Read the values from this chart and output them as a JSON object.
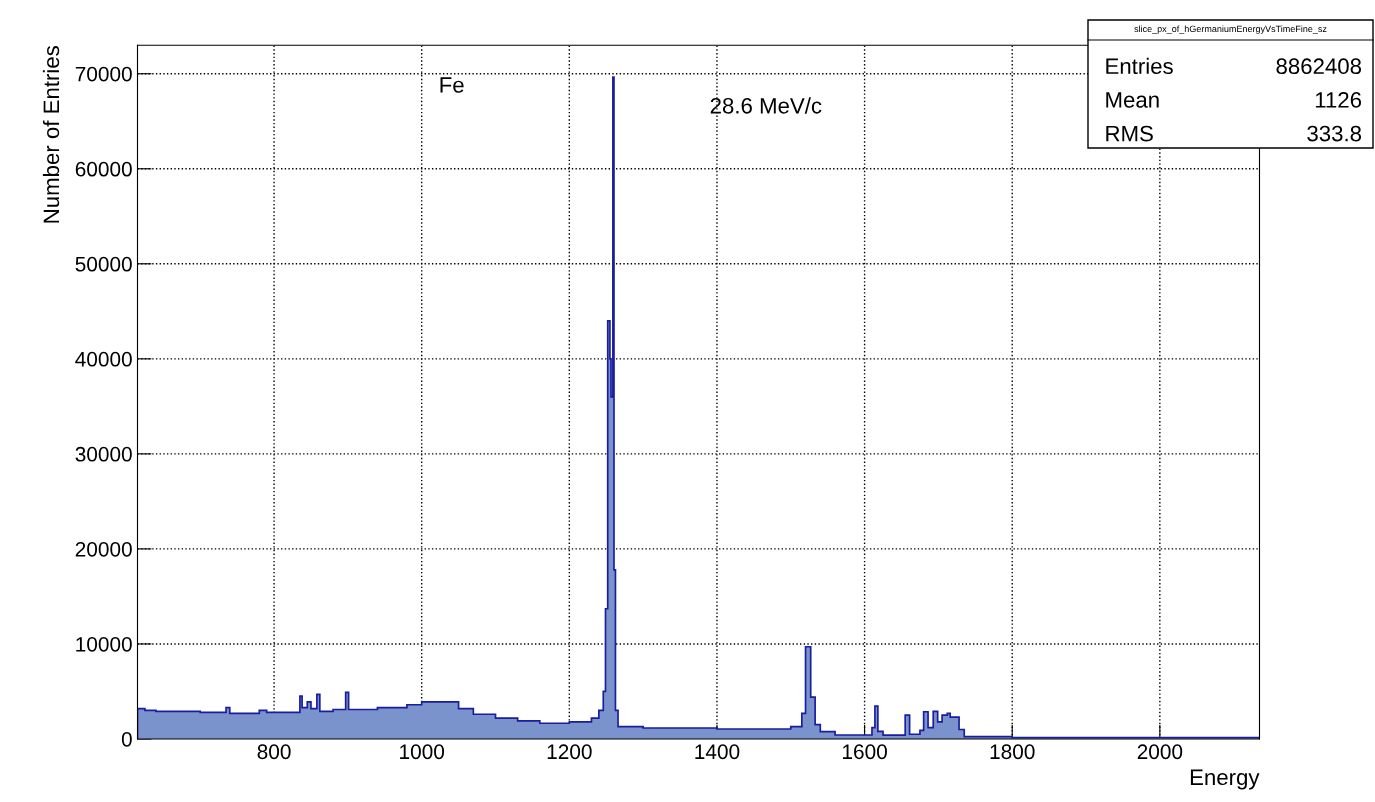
{
  "chart_data": {
    "type": "histogram",
    "xlabel": "Energy",
    "ylabel": "Number of Entries",
    "bins": [
      615,
      625,
      640,
      700,
      735,
      740,
      780,
      790,
      835,
      838,
      845,
      850,
      858,
      862,
      880,
      897,
      901,
      940,
      980,
      1000,
      1050,
      1070,
      1100,
      1130,
      1160,
      1200,
      1230,
      1240,
      1246,
      1249,
      1252,
      1255,
      1256.5,
      1259,
      1260.5,
      1262.5,
      1266,
      1300,
      1400,
      1500,
      1515,
      1520,
      1527,
      1533,
      1540,
      1560,
      1610,
      1614,
      1618,
      1625,
      1655,
      1661,
      1675,
      1680,
      1686,
      1693,
      1699,
      1705,
      1712,
      1716,
      1728,
      1735,
      1800,
      2135
    ],
    "values": [
      3200,
      3000,
      2900,
      2800,
      3300,
      2700,
      3000,
      2800,
      4500,
      3300,
      3900,
      3200,
      4700,
      2900,
      3100,
      4900,
      3100,
      3300,
      3600,
      3900,
      3200,
      2600,
      2200,
      1900,
      1650,
      1800,
      2200,
      3000,
      5000,
      13700,
      44000,
      40000,
      36000,
      69650,
      17800,
      3000,
      1300,
      1150,
      1050,
      1300,
      2700,
      9700,
      4400,
      1500,
      770,
      420,
      1200,
      3460,
      800,
      400,
      2500,
      500,
      900,
      2860,
      1200,
      2900,
      1800,
      2500,
      2700,
      2300,
      1000,
      250,
      150
    ],
    "color": "#7b93cc",
    "xlim": [
      615,
      2135
    ],
    "xticks": [
      800,
      1000,
      1200,
      1400,
      1600,
      1800,
      2000
    ],
    "ylim": [
      0,
      73000
    ],
    "yticks": [
      0,
      10000,
      20000,
      30000,
      40000,
      50000,
      60000,
      70000
    ],
    "grid": true,
    "legend": false,
    "annotations": [
      "Fe",
      "28.6 MeV/c",
      "slice_px_of_hGermaniumEnergyVsTimeFine_sz",
      "Entries",
      "8862408",
      "Mean",
      "1126",
      "RMS",
      "333.8"
    ]
  }
}
